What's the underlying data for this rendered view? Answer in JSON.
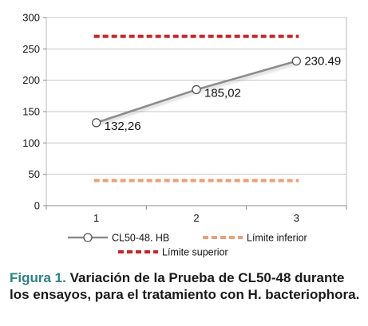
{
  "chart_data": {
    "type": "line",
    "x": [
      1,
      2,
      3
    ],
    "xticks": [
      "1",
      "2",
      "3"
    ],
    "ylim": [
      0,
      300
    ],
    "yticks": [
      0,
      50,
      100,
      150,
      200,
      250,
      300
    ],
    "grid": true,
    "legend_position": "bottom",
    "series": [
      {
        "name": "CL50-48. HB",
        "values": [
          132.26,
          185.02,
          230.49
        ],
        "data_labels": [
          "132,26",
          "185,02",
          "230.49"
        ],
        "color": "#8c8c8c",
        "marker": "open-circle",
        "style": "solid"
      },
      {
        "name": "Límite inferior",
        "values": [
          40,
          40,
          40
        ],
        "color": "#e8a07c",
        "style": "dashed"
      },
      {
        "name": "Límite superior",
        "values": [
          270,
          270,
          270
        ],
        "color": "#c0262a",
        "style": "dashed"
      }
    ]
  },
  "caption": {
    "figure_label": "Figura 1.",
    "text": "Variación de la Prueba de CL50-48 durante los ensayos, para el tratamiento con H. bacteriophora."
  }
}
